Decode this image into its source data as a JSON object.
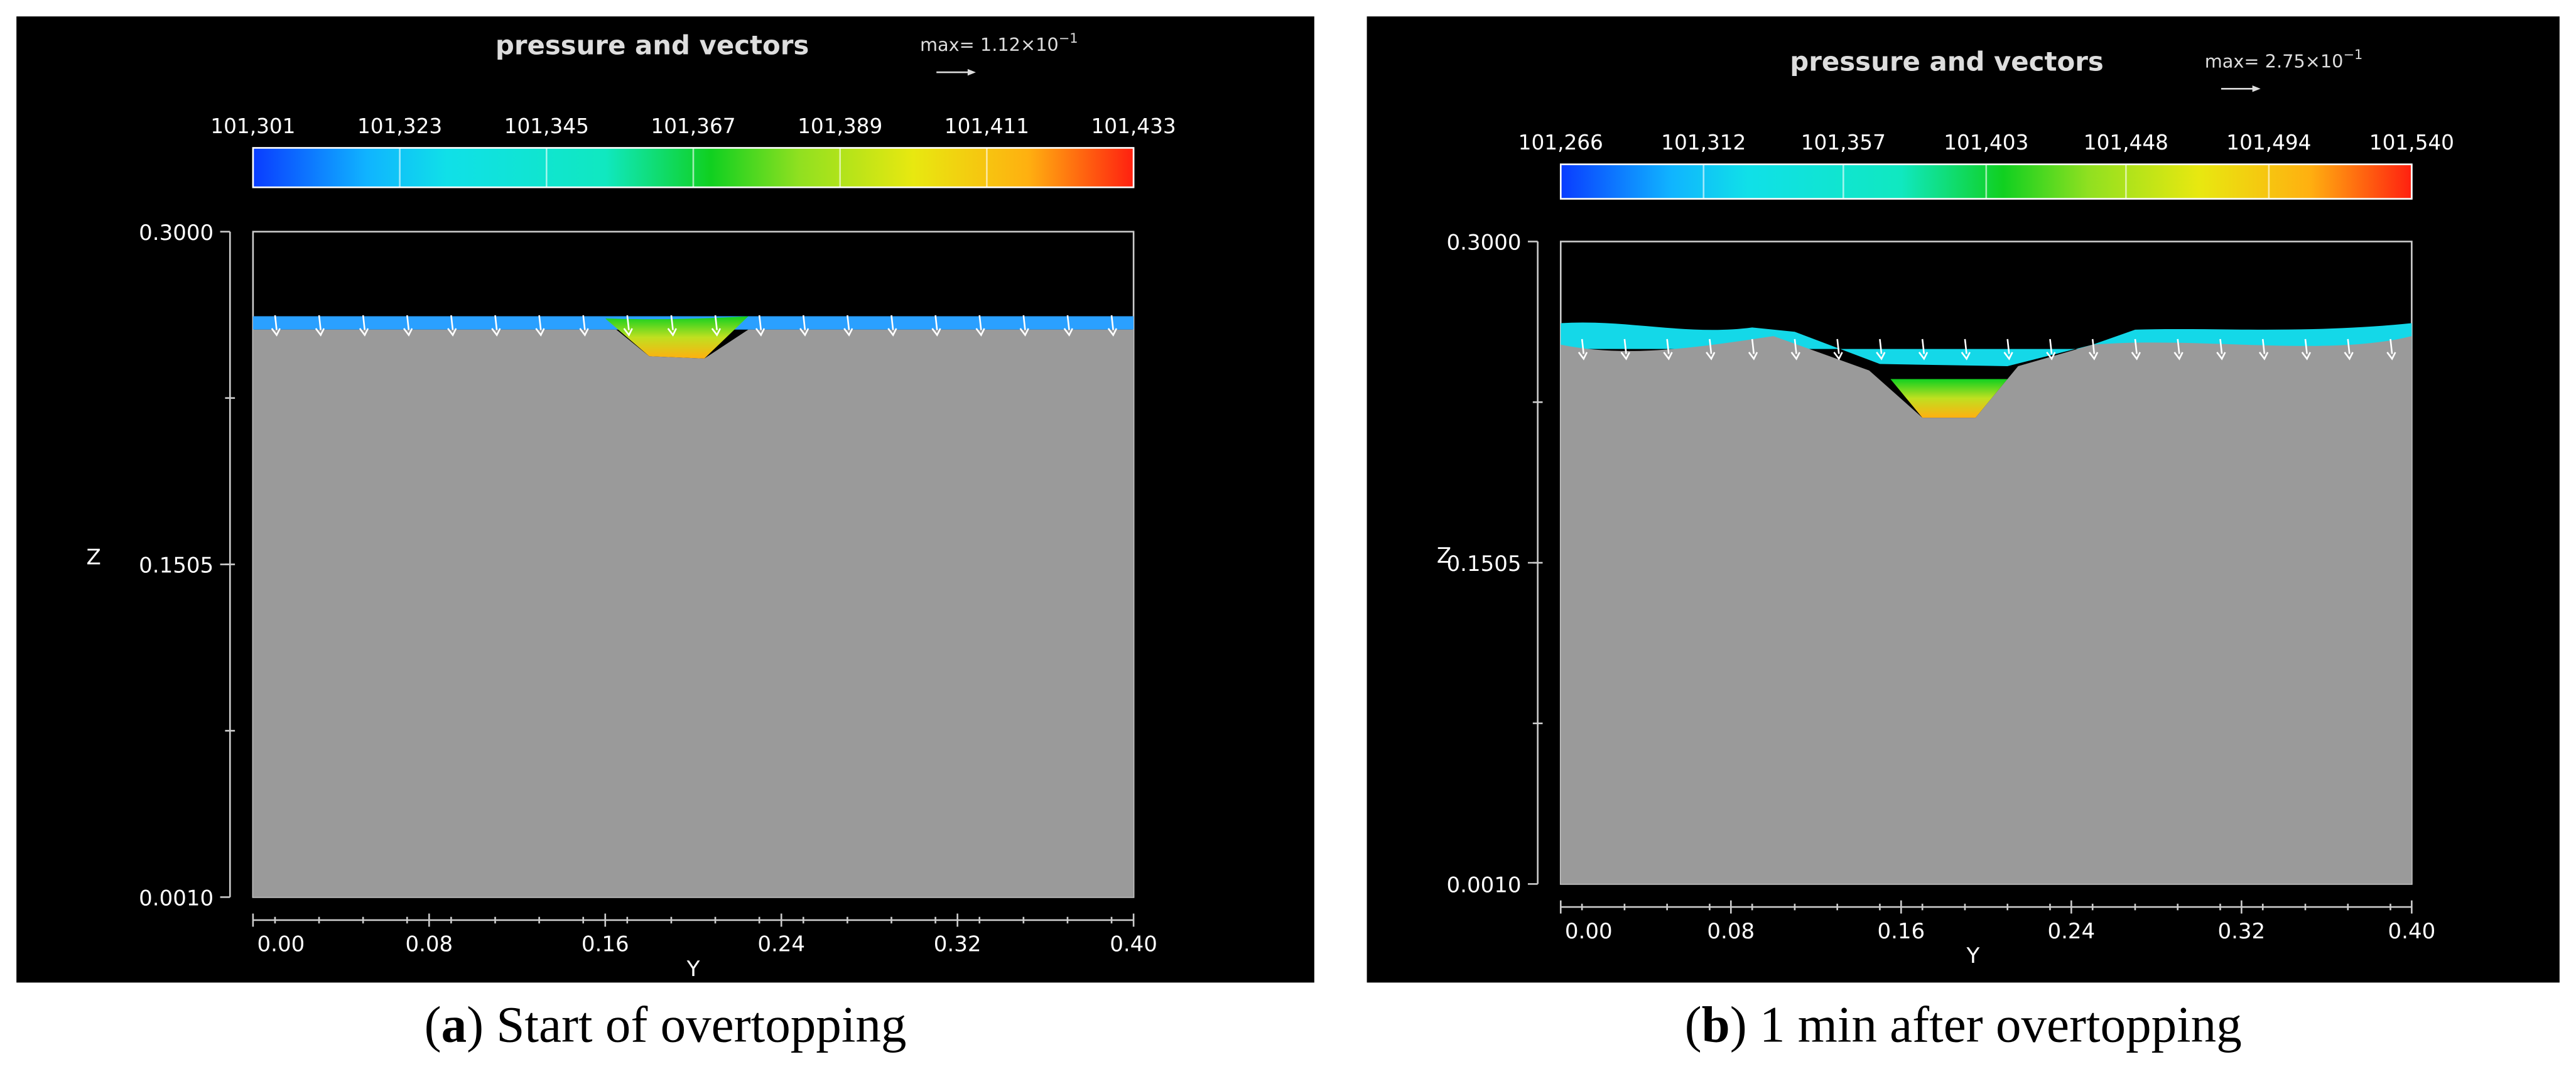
{
  "panels": [
    {
      "title": "pressure and vectors",
      "max_label": {
        "text": "max= 1.12×10",
        "exponent": "−1"
      },
      "colorbar_ticks": [
        {
          "value": 101301,
          "label": "101,301"
        },
        {
          "value": 101323,
          "label": "101,323"
        },
        {
          "value": 101345,
          "label": "101,345"
        },
        {
          "value": 101367,
          "label": "101,367"
        },
        {
          "value": 101389,
          "label": "101,389"
        },
        {
          "value": 101411,
          "label": "101,411"
        },
        {
          "value": 101433,
          "label": "101,433"
        }
      ],
      "y_label": "Z",
      "x_label": "Y",
      "yticks": [
        {
          "value": 0.001,
          "label": "0.0010"
        },
        {
          "value": 0.1505,
          "label": "0.1505"
        },
        {
          "value": 0.3,
          "label": "0.3000"
        }
      ],
      "xticks": [
        {
          "value": 0,
          "label": "0.00"
        },
        {
          "value": 0.08,
          "label": "0.08"
        },
        {
          "value": 0.16,
          "label": "0.16"
        },
        {
          "value": 0.24,
          "label": "0.24"
        },
        {
          "value": 0.32,
          "label": "0.32"
        },
        {
          "value": 0.4,
          "label": "0.40"
        }
      ],
      "caption": {
        "open": "(",
        "letter": "a",
        "rest": ") Start of overtopping"
      }
    },
    {
      "title": "pressure and vectors",
      "max_label": {
        "text": "max= 2.75×10",
        "exponent": "−1"
      },
      "colorbar_ticks": [
        {
          "value": 101266,
          "label": "101,266"
        },
        {
          "value": 101312,
          "label": "101,312"
        },
        {
          "value": 101357,
          "label": "101,357"
        },
        {
          "value": 101403,
          "label": "101,403"
        },
        {
          "value": 101448,
          "label": "101,448"
        },
        {
          "value": 101494,
          "label": "101,494"
        },
        {
          "value": 101540,
          "label": "101,540"
        }
      ],
      "y_label": "Z",
      "x_label": "Y",
      "yticks": [
        {
          "value": 0.001,
          "label": "0.0010"
        },
        {
          "value": 0.1505,
          "label": "0.1505"
        },
        {
          "value": 0.3,
          "label": "0.3000"
        }
      ],
      "xticks": [
        {
          "value": 0,
          "label": "0.00"
        },
        {
          "value": 0.08,
          "label": "0.08"
        },
        {
          "value": 0.16,
          "label": "0.16"
        },
        {
          "value": 0.24,
          "label": "0.24"
        },
        {
          "value": 0.32,
          "label": "0.32"
        },
        {
          "value": 0.4,
          "label": "0.40"
        }
      ],
      "caption": {
        "open": "(",
        "letter": "b",
        "rest": ") 1 min after overtopping"
      }
    }
  ]
}
